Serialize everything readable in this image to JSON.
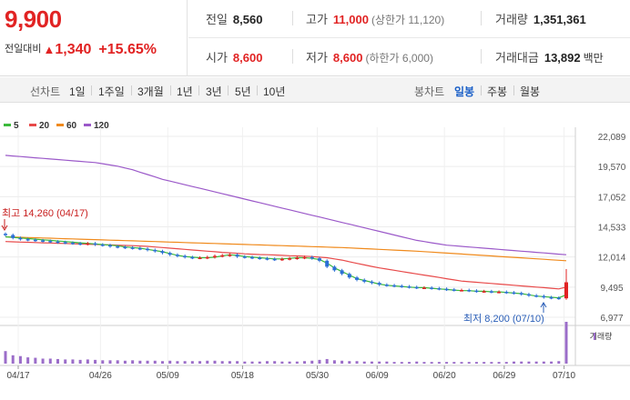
{
  "quote": {
    "current_price": "9,900",
    "change_label": "전일대비",
    "change_arrow": "▲",
    "change_amount": "1,340",
    "change_percent": "+15.65%",
    "prev_close": {
      "label": "전일",
      "value": "8,560"
    },
    "high": {
      "label": "고가",
      "value": "11,000",
      "sub": "(상한가 11,120)"
    },
    "volume": {
      "label": "거래량",
      "value": "1,351,361"
    },
    "open": {
      "label": "시가",
      "value": "8,600"
    },
    "low": {
      "label": "저가",
      "value": "8,600",
      "sub": "(하한가 6,000)"
    },
    "trade_value": {
      "label": "거래대금",
      "value": "13,892",
      "unit": "백만"
    }
  },
  "period_tabs": {
    "line_label": "선차트",
    "line_items": [
      "1일",
      "1주일",
      "3개월",
      "1년",
      "3년",
      "5년",
      "10년"
    ],
    "candle_label": "봉차트",
    "candle_items": [
      "일봉",
      "주봉",
      "월봉"
    ],
    "active": "일봉"
  },
  "legend": [
    {
      "label": "5",
      "color": "#3cba3c"
    },
    {
      "label": "20",
      "color": "#e84a4a"
    },
    {
      "label": "60",
      "color": "#f08a1c"
    },
    {
      "label": "120",
      "color": "#9b59c9"
    }
  ],
  "colors": {
    "up": "#e12323",
    "down": "#2b6fd6",
    "volume": "#9b6dc9"
  },
  "chart_data": {
    "type": "candlestick",
    "y_ticks": [
      "22,089",
      "19,570",
      "17,052",
      "14,533",
      "12,014",
      "9,495",
      "6,977"
    ],
    "ylim": [
      6977,
      22089
    ],
    "x_ticks": [
      "04/17",
      "04/26",
      "05/09",
      "05/18",
      "05/30",
      "06/09",
      "06/20",
      "06/29",
      "07/10"
    ],
    "annotations": {
      "high": "최고 14,260 (04/17)",
      "low": "최저 8,200 (07/10)"
    },
    "volume_label": "거래량",
    "closes": [
      13850,
      13600,
      13500,
      13450,
      13400,
      13350,
      13300,
      13250,
      13200,
      13150,
      13100,
      13150,
      13050,
      13000,
      12900,
      12850,
      12800,
      12750,
      12700,
      12600,
      12500,
      12350,
      12200,
      12100,
      12000,
      11950,
      11950,
      12000,
      12100,
      12150,
      12200,
      12050,
      12000,
      11950,
      11900,
      11850,
      11800,
      11850,
      11900,
      11950,
      12000,
      11900,
      11700,
      11200,
      10900,
      10600,
      10300,
      10100,
      9950,
      9850,
      9700,
      9650,
      9600,
      9550,
      9500,
      9450,
      9450,
      9400,
      9350,
      9300,
      9250,
      9250,
      9200,
      9150,
      9150,
      9100,
      9100,
      9050,
      9000,
      8900,
      8800,
      8750,
      8650,
      8600,
      8560,
      9900
    ],
    "ma5": [
      13700,
      13650,
      13600,
      13550,
      13500,
      13450,
      13400,
      13350,
      13300,
      13250,
      13200,
      13150,
      13100,
      13050,
      13000,
      12950,
      12850,
      12800,
      12750,
      12650,
      12550,
      12450,
      12300,
      12150,
      12050,
      12000,
      11950,
      11950,
      12000,
      12100,
      12200,
      12150,
      12050,
      12000,
      11950,
      11900,
      11850,
      11850,
      11900,
      11950,
      11950,
      11900,
      11800,
      11500,
      11100,
      10800,
      10500,
      10200,
      10050,
      9900,
      9750,
      9650,
      9600,
      9550,
      9500,
      9450,
      9450,
      9400,
      9350,
      9300,
      9250,
      9200,
      9200,
      9150,
      9150,
      9100,
      9100,
      9050,
      9000,
      8950,
      8850,
      8750,
      8700,
      8650,
      8600,
      8850
    ],
    "ma20": [
      13300,
      13280,
      13260,
      13240,
      13220,
      13200,
      13180,
      13160,
      13140,
      13120,
      13100,
      13080,
      13060,
      13040,
      13020,
      13000,
      12980,
      12960,
      12930,
      12900,
      12850,
      12800,
      12750,
      12700,
      12650,
      12600,
      12550,
      12500,
      12450,
      12400,
      12360,
      12320,
      12280,
      12250,
      12220,
      12200,
      12180,
      12150,
      12120,
      12100,
      12080,
      12050,
      12000,
      11950,
      11850,
      11750,
      11620,
      11480,
      11350,
      11220,
      11100,
      11000,
      10900,
      10800,
      10700,
      10600,
      10500,
      10400,
      10300,
      10200,
      10100,
      10000,
      9950,
      9900,
      9850,
      9800,
      9750,
      9700,
      9650,
      9600,
      9550,
      9500,
      9450,
      9400,
      9350,
      9500
    ],
    "ma60": [
      13700,
      13680,
      13660,
      13640,
      13620,
      13600,
      13580,
      13560,
      13540,
      13520,
      13500,
      13480,
      13460,
      13440,
      13420,
      13400,
      13380,
      13360,
      13340,
      13320,
      13300,
      13280,
      13260,
      13240,
      13220,
      13200,
      13180,
      13160,
      13140,
      13120,
      13100,
      13080,
      13060,
      13040,
      13020,
      13000,
      12980,
      12960,
      12940,
      12920,
      12900,
      12880,
      12860,
      12840,
      12820,
      12800,
      12770,
      12740,
      12710,
      12680,
      12650,
      12620,
      12590,
      12560,
      12530,
      12500,
      12460,
      12420,
      12380,
      12340,
      12300,
      12260,
      12220,
      12180,
      12140,
      12100,
      12060,
      12020,
      11980,
      11940,
      11900,
      11860,
      11820,
      11780,
      11740,
      11700
    ],
    "ma120": [
      20500,
      20450,
      20400,
      20350,
      20300,
      20250,
      20200,
      20150,
      20100,
      20050,
      20000,
      19950,
      19900,
      19800,
      19700,
      19600,
      19450,
      19300,
      19100,
      18900,
      18700,
      18500,
      18350,
      18200,
      18050,
      17900,
      17750,
      17600,
      17450,
      17300,
      17150,
      17000,
      16850,
      16700,
      16550,
      16400,
      16250,
      16100,
      15950,
      15800,
      15650,
      15500,
      15350,
      15200,
      15050,
      14900,
      14750,
      14600,
      14450,
      14300,
      14150,
      14000,
      13850,
      13700,
      13550,
      13400,
      13300,
      13200,
      13100,
      13000,
      12950,
      12900,
      12850,
      12800,
      12750,
      12700,
      12650,
      12600,
      12550,
      12500,
      12450,
      12400,
      12350,
      12300,
      12250,
      12200
    ],
    "volume": [
      30,
      20,
      18,
      15,
      14,
      12,
      12,
      11,
      10,
      10,
      9,
      10,
      9,
      8,
      8,
      8,
      7,
      8,
      7,
      7,
      7,
      6,
      7,
      6,
      6,
      6,
      6,
      7,
      7,
      6,
      6,
      6,
      5,
      5,
      5,
      6,
      6,
      5,
      5,
      5,
      6,
      7,
      9,
      11,
      8,
      7,
      6,
      6,
      5,
      5,
      5,
      5,
      4,
      4,
      4,
      5,
      4,
      4,
      4,
      4,
      4,
      4,
      4,
      4,
      4,
      4,
      4,
      4,
      5,
      5,
      5,
      5,
      5,
      5,
      6,
      100
    ]
  }
}
